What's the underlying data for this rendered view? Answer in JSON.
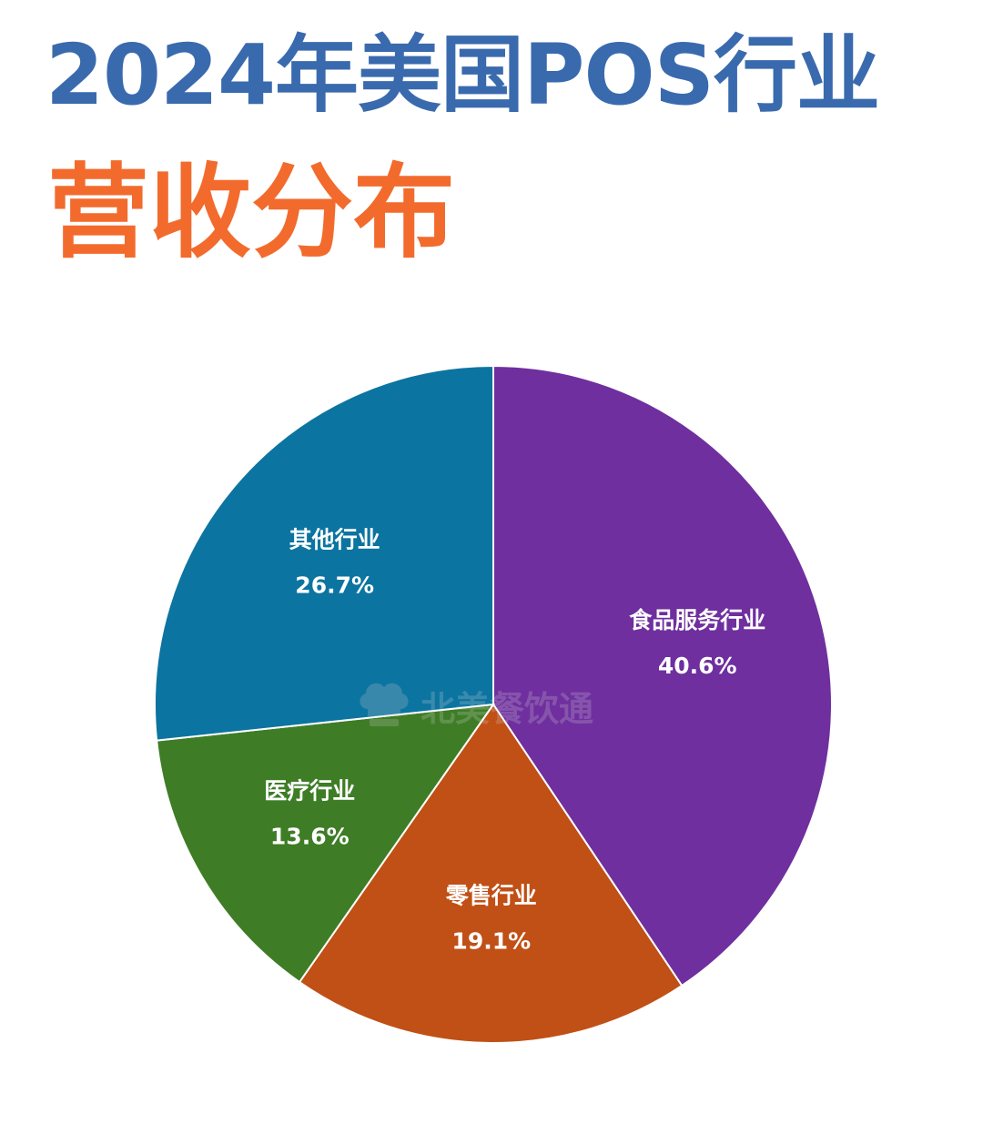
{
  "header": {
    "title_line1": "2024年美国POS行业",
    "title_line2": "营收分布"
  },
  "colors": {
    "title_line1": "#3a6aae",
    "title_line2": "#f26b2d",
    "slice_border": "#ffffff"
  },
  "watermark": {
    "text": "北美餐饮通",
    "icon": "chef-hat-icon"
  },
  "chart_data": {
    "type": "pie",
    "start_angle_deg": 0,
    "direction": "clockwise",
    "slices": [
      {
        "label": "食品服务行业",
        "value": 40.6,
        "value_label": "40.6%",
        "color": "#6f2f9f"
      },
      {
        "label": "零售行业",
        "value": 19.1,
        "value_label": "19.1%",
        "color": "#c05015"
      },
      {
        "label": "医疗行业",
        "value": 13.6,
        "value_label": "13.6%",
        "color": "#3e7d26"
      },
      {
        "label": "其他行业",
        "value": 26.7,
        "value_label": "26.7%",
        "color": "#0c74a0"
      }
    ]
  }
}
